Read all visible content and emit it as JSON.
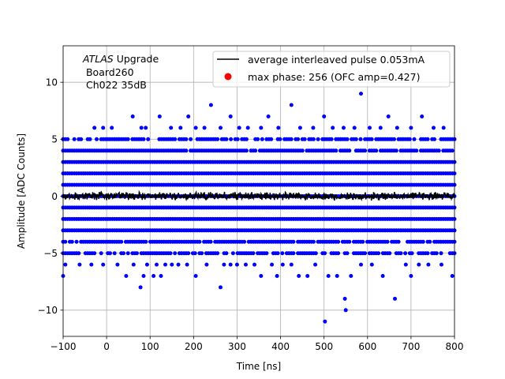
{
  "chart_data": {
    "type": "scatter",
    "xlabel": "Time [ns]",
    "ylabel": "Amplitude [ADC Counts]",
    "xlim": [
      -100,
      800
    ],
    "ylim": [
      -12.3,
      13.2
    ],
    "x_ticks": [
      -100,
      0,
      100,
      200,
      300,
      400,
      500,
      600,
      700,
      800
    ],
    "y_ticks": [
      -10,
      -5,
      0,
      5,
      10
    ],
    "grid": true,
    "legend_position": "top-right",
    "annotation": {
      "line1_italic": "ATLAS",
      "line1_rest": " Upgrade",
      "line2": " Board260",
      "line3": " Ch022 35dB"
    },
    "series": [
      {
        "name": "average interleaved pulse 0.053mA",
        "kind": "line",
        "color": "#000000",
        "x_range": [
          -100,
          800
        ],
        "mean": 0.0,
        "noise_amplitude": 0.25
      },
      {
        "name": "max phase: 256 (OFC amp=0.427)",
        "kind": "scatter",
        "color": "#0000ff",
        "legend_marker_color": "#ff0000",
        "dense_levels": [
          -5,
          -4,
          -3,
          -2,
          -1,
          0,
          1,
          2,
          3,
          4,
          5
        ],
        "dense_level_x_range": [
          -100,
          800
        ],
        "sparse_points": [
          [
            -28,
            6
          ],
          [
            -8,
            6
          ],
          [
            12,
            6
          ],
          [
            60,
            7
          ],
          [
            80,
            6
          ],
          [
            90,
            6
          ],
          [
            122,
            7
          ],
          [
            148,
            6
          ],
          [
            170,
            6
          ],
          [
            188,
            7
          ],
          [
            205,
            6
          ],
          [
            225,
            6
          ],
          [
            240,
            8
          ],
          [
            262,
            6
          ],
          [
            285,
            7
          ],
          [
            305,
            6
          ],
          [
            325,
            6
          ],
          [
            355,
            6
          ],
          [
            372,
            7
          ],
          [
            395,
            6
          ],
          [
            425,
            8
          ],
          [
            445,
            6
          ],
          [
            475,
            6
          ],
          [
            500,
            7
          ],
          [
            520,
            6
          ],
          [
            545,
            6
          ],
          [
            570,
            6
          ],
          [
            585,
            9
          ],
          [
            605,
            6
          ],
          [
            630,
            6
          ],
          [
            648,
            7
          ],
          [
            668,
            6
          ],
          [
            700,
            6
          ],
          [
            725,
            7
          ],
          [
            752,
            6
          ],
          [
            775,
            6
          ],
          [
            -100,
            -7
          ],
          [
            -95,
            -6
          ],
          [
            -62,
            -6
          ],
          [
            -35,
            -6
          ],
          [
            -8,
            -6
          ],
          [
            25,
            -6
          ],
          [
            45,
            -7
          ],
          [
            62,
            -6
          ],
          [
            78,
            -8
          ],
          [
            85,
            -7
          ],
          [
            93,
            -6
          ],
          [
            108,
            -7
          ],
          [
            115,
            -6
          ],
          [
            125,
            -7
          ],
          [
            135,
            -6
          ],
          [
            150,
            -6
          ],
          [
            165,
            -6
          ],
          [
            185,
            -6
          ],
          [
            205,
            -7
          ],
          [
            230,
            -6
          ],
          [
            262,
            -8
          ],
          [
            270,
            -6
          ],
          [
            285,
            -6
          ],
          [
            300,
            -6
          ],
          [
            320,
            -6
          ],
          [
            340,
            -6
          ],
          [
            355,
            -7
          ],
          [
            380,
            -6
          ],
          [
            392,
            -7
          ],
          [
            405,
            -6
          ],
          [
            425,
            -6
          ],
          [
            442,
            -7
          ],
          [
            462,
            -7
          ],
          [
            480,
            -6
          ],
          [
            502,
            -11
          ],
          [
            510,
            -7
          ],
          [
            530,
            -7
          ],
          [
            548,
            -9
          ],
          [
            550,
            -10
          ],
          [
            562,
            -7
          ],
          [
            585,
            -6
          ],
          [
            610,
            -6
          ],
          [
            635,
            -7
          ],
          [
            663,
            -9
          ],
          [
            688,
            -6
          ],
          [
            700,
            -7
          ],
          [
            718,
            -6
          ],
          [
            740,
            -6
          ],
          [
            770,
            -6
          ],
          [
            795,
            -7
          ]
        ]
      }
    ]
  }
}
